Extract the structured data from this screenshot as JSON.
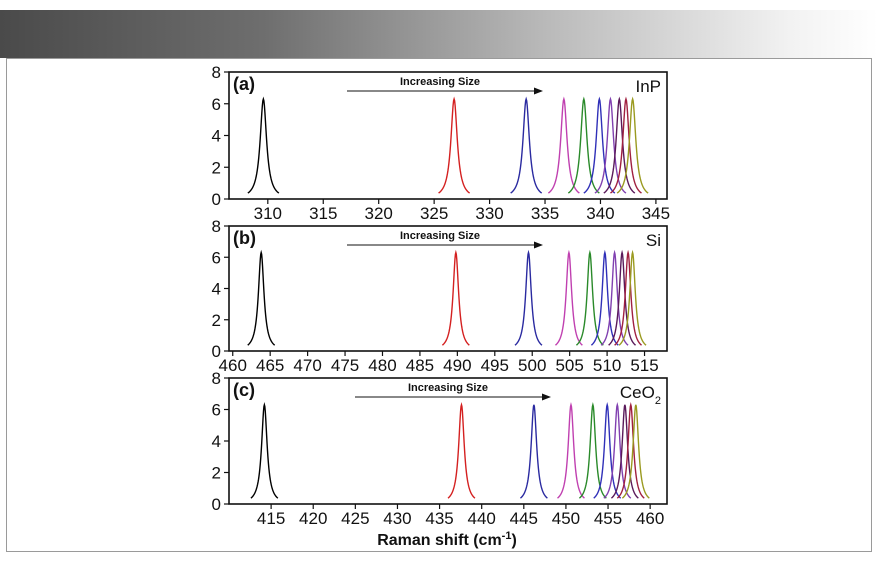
{
  "chart_data": [
    {
      "type": "line",
      "panel_label": "(a)",
      "material": "InP",
      "material_sub": "",
      "annotation": "Increasing Size",
      "xlim": [
        306.5,
        346
      ],
      "ylim": [
        0,
        8
      ],
      "x_ticks": [
        310,
        315,
        320,
        325,
        330,
        335,
        340,
        345
      ],
      "y_ticks": [
        0,
        2,
        4,
        6,
        8
      ],
      "peak_height": 6.3,
      "peak_hwhm": 0.35,
      "series": [
        {
          "center": 309.6,
          "color": "#000000"
        },
        {
          "center": 326.8,
          "color": "#d42020"
        },
        {
          "center": 333.3,
          "color": "#2a2aa0"
        },
        {
          "center": 336.7,
          "color": "#c040b0"
        },
        {
          "center": 338.5,
          "color": "#2a8a2a"
        },
        {
          "center": 339.9,
          "color": "#3030b8"
        },
        {
          "center": 340.9,
          "color": "#8040b0"
        },
        {
          "center": 341.7,
          "color": "#5a1a5a"
        },
        {
          "center": 342.3,
          "color": "#a02040"
        },
        {
          "center": 342.9,
          "color": "#9a9a20"
        }
      ]
    },
    {
      "type": "line",
      "panel_label": "(b)",
      "material": "Si",
      "material_sub": "",
      "annotation": "Increasing Size",
      "xlim": [
        459.5,
        518
      ],
      "ylim": [
        0,
        8
      ],
      "x_ticks": [
        460,
        465,
        470,
        475,
        480,
        485,
        490,
        495,
        500,
        505,
        510,
        515
      ],
      "y_ticks": [
        0,
        2,
        4,
        6,
        8
      ],
      "peak_height": 6.3,
      "peak_hwhm": 0.45,
      "series": [
        {
          "center": 463.8,
          "color": "#000000"
        },
        {
          "center": 489.8,
          "color": "#d42020"
        },
        {
          "center": 499.5,
          "color": "#2a2aa0"
        },
        {
          "center": 504.9,
          "color": "#c040b0"
        },
        {
          "center": 507.7,
          "color": "#2a8a2a"
        },
        {
          "center": 509.7,
          "color": "#3030b8"
        },
        {
          "center": 511.0,
          "color": "#8040b0"
        },
        {
          "center": 512.0,
          "color": "#5a1a5a"
        },
        {
          "center": 512.8,
          "color": "#a02040"
        },
        {
          "center": 513.4,
          "color": "#9a9a20"
        }
      ]
    },
    {
      "type": "line",
      "panel_label": "(c)",
      "material": "CeO",
      "material_sub": "2",
      "annotation": "Increasing Size",
      "xlim": [
        410,
        462
      ],
      "ylim": [
        0,
        8
      ],
      "x_ticks": [
        415,
        420,
        425,
        430,
        435,
        440,
        445,
        450,
        455,
        460
      ],
      "y_ticks": [
        0,
        2,
        4,
        6,
        8
      ],
      "peak_height": 6.3,
      "peak_hwhm": 0.4,
      "series": [
        {
          "center": 414.2,
          "color": "#000000"
        },
        {
          "center": 437.6,
          "color": "#d42020"
        },
        {
          "center": 446.2,
          "color": "#2a2aa0"
        },
        {
          "center": 450.6,
          "color": "#c040b0"
        },
        {
          "center": 453.2,
          "color": "#2a8a2a"
        },
        {
          "center": 454.9,
          "color": "#3030b8"
        },
        {
          "center": 456.1,
          "color": "#8040b0"
        },
        {
          "center": 457.0,
          "color": "#5a1a5a"
        },
        {
          "center": 457.7,
          "color": "#a02040"
        },
        {
          "center": 458.3,
          "color": "#9a9a20"
        }
      ]
    }
  ],
  "xlabel": "Raman shift (cm",
  "xlabel_sup": "-1",
  "xlabel_end": ")"
}
